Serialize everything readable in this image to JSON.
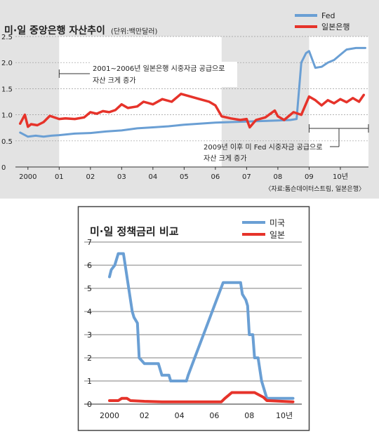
{
  "chart_data": [
    {
      "type": "line",
      "title": "미·일 중앙은행 자산추이",
      "unit_label": "(단위:백만달러)",
      "x_range": [
        1999.6,
        2010.9
      ],
      "ylim": [
        0,
        2.5
      ],
      "y_ticks": [
        0,
        0.5,
        1.0,
        1.5,
        2.0,
        2.5
      ],
      "y_tick_labels": [
        "0",
        "0.5",
        "1.0",
        "1.5",
        "2.0",
        "2.5"
      ],
      "x_ticks": [
        2000,
        2001,
        2002,
        2003,
        2004,
        2005,
        2006,
        2007,
        2008,
        2009,
        2010
      ],
      "x_tick_labels": [
        "2000",
        "01",
        "02",
        "03",
        "04",
        "05",
        "06",
        "07",
        "08",
        "09",
        "10년"
      ],
      "grid": true,
      "legend_position": "top-right",
      "highlight_ranges": [
        [
          2001.0,
          2006.2
        ],
        [
          2009.0,
          2010.9
        ]
      ],
      "annotations": [
        {
          "lines": [
            "2001~2006년 일본은행 시중자금 공급으로",
            "자산 크게 증가"
          ],
          "range": [
            2001.0,
            2006.2
          ]
        },
        {
          "lines": [
            "2009년 이후 미 Fed 시중자금 공급으로",
            "자산 크게 증가"
          ],
          "range": [
            2009.0,
            2010.9
          ]
        }
      ],
      "source": "〈자료:톰슨데이터스트림, 일본은행〉",
      "series": [
        {
          "name": "Fed",
          "color": "#6a9fd4",
          "x": [
            1999.75,
            2000.0,
            2000.25,
            2000.5,
            2000.75,
            2001.0,
            2001.5,
            2002.0,
            2002.5,
            2003.0,
            2003.5,
            2004.0,
            2004.5,
            2005.0,
            2005.5,
            2006.0,
            2006.5,
            2007.0,
            2007.5,
            2008.0,
            2008.4,
            2008.6,
            2008.75,
            2008.9,
            2009.0,
            2009.2,
            2009.4,
            2009.6,
            2009.8,
            2010.0,
            2010.2,
            2010.5,
            2010.8
          ],
          "y": [
            0.66,
            0.58,
            0.6,
            0.58,
            0.6,
            0.61,
            0.64,
            0.65,
            0.68,
            0.7,
            0.74,
            0.76,
            0.78,
            0.81,
            0.83,
            0.85,
            0.86,
            0.87,
            0.88,
            0.89,
            0.9,
            0.92,
            2.0,
            2.18,
            2.22,
            1.9,
            1.92,
            2.0,
            2.05,
            2.15,
            2.25,
            2.28,
            2.28
          ]
        },
        {
          "name": "일본은행",
          "color": "#e6332a",
          "x": [
            1999.75,
            1999.9,
            2000.0,
            2000.1,
            2000.3,
            2000.5,
            2000.7,
            2001.0,
            2001.2,
            2001.5,
            2001.8,
            2002.0,
            2002.2,
            2002.4,
            2002.6,
            2002.8,
            2003.0,
            2003.2,
            2003.5,
            2003.7,
            2004.0,
            2004.3,
            2004.6,
            2004.9,
            2005.2,
            2005.5,
            2005.8,
            2006.0,
            2006.2,
            2006.5,
            2006.8,
            2007.0,
            2007.1,
            2007.3,
            2007.6,
            2007.9,
            2008.0,
            2008.2,
            2008.5,
            2008.75,
            2009.0,
            2009.2,
            2009.4,
            2009.6,
            2009.8,
            2010.0,
            2010.2,
            2010.4,
            2010.6,
            2010.75
          ],
          "y": [
            0.83,
            1.0,
            0.77,
            0.82,
            0.8,
            0.86,
            0.98,
            0.92,
            0.93,
            0.92,
            0.95,
            1.05,
            1.02,
            1.07,
            1.05,
            1.09,
            1.2,
            1.13,
            1.16,
            1.25,
            1.2,
            1.3,
            1.25,
            1.4,
            1.35,
            1.3,
            1.25,
            1.18,
            0.97,
            0.93,
            0.9,
            0.92,
            0.76,
            0.9,
            0.95,
            1.08,
            0.97,
            0.9,
            1.05,
            1.0,
            1.35,
            1.28,
            1.18,
            1.28,
            1.22,
            1.3,
            1.24,
            1.32,
            1.25,
            1.38
          ]
        }
      ]
    },
    {
      "type": "line",
      "title": "미·일 정책금리 비교",
      "x_range": [
        2000.0,
        2010.6
      ],
      "ylim": [
        0,
        7
      ],
      "y_ticks": [
        0,
        1,
        2,
        3,
        4,
        5,
        6,
        7
      ],
      "y_tick_labels": [
        "0",
        "1",
        "2",
        "3",
        "4",
        "5",
        "6",
        "7"
      ],
      "x_ticks": [
        2000,
        2002,
        2004,
        2006,
        2008,
        2010
      ],
      "x_tick_labels": [
        "2000",
        "02",
        "04",
        "06",
        "08",
        "10년"
      ],
      "grid": true,
      "legend_position": "top-right",
      "series": [
        {
          "name": "미국",
          "color": "#6a9fd4",
          "x": [
            2000.0,
            2000.1,
            2000.3,
            2000.5,
            2000.6,
            2000.8,
            2001.0,
            2001.1,
            2001.3,
            2001.4,
            2001.6,
            2001.7,
            2002.0,
            2002.3,
            2002.8,
            2003.0,
            2003.4,
            2003.5,
            2004.0,
            2004.4,
            2004.5,
            2005.0,
            2005.5,
            2006.0,
            2006.5,
            2007.5,
            2007.6,
            2007.8,
            2007.9,
            2008.0,
            2008.2,
            2008.3,
            2008.5,
            2008.7,
            2008.9,
            2009.0,
            2010.5
          ],
          "y": [
            5.5,
            5.8,
            6.0,
            6.5,
            6.5,
            6.5,
            5.5,
            5.0,
            4.0,
            3.75,
            3.5,
            2.0,
            1.75,
            1.75,
            1.75,
            1.25,
            1.25,
            1.0,
            1.0,
            1.0,
            1.25,
            2.25,
            3.25,
            4.25,
            5.25,
            5.25,
            4.75,
            4.5,
            4.25,
            3.0,
            3.0,
            2.0,
            2.0,
            1.0,
            0.5,
            0.25,
            0.25
          ]
        },
        {
          "name": "일본",
          "color": "#e6332a",
          "x": [
            2000.0,
            2000.5,
            2000.7,
            2001.0,
            2001.2,
            2002.0,
            2003.0,
            2004.0,
            2005.0,
            2006.0,
            2006.4,
            2006.6,
            2007.0,
            2007.2,
            2008.0,
            2008.3,
            2008.8,
            2009.0,
            2010.5
          ],
          "y": [
            0.15,
            0.15,
            0.25,
            0.25,
            0.15,
            0.12,
            0.1,
            0.1,
            0.1,
            0.1,
            0.1,
            0.25,
            0.5,
            0.5,
            0.5,
            0.5,
            0.3,
            0.15,
            0.1
          ]
        }
      ]
    }
  ]
}
